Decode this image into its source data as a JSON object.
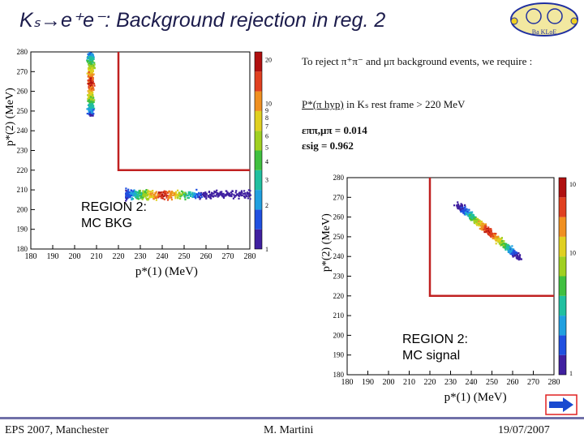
{
  "slide": {
    "title": "Kₛ→e⁺e⁻: Background rejection in reg. 2",
    "logo_text": "Ba KLoE",
    "description": "To reject π⁺π⁻ and μπ background events, we require :",
    "cut_text_underlined": "P*(π hyp)",
    "cut_text_rest": " in Kₛ rest frame > 220 MeV",
    "eff_bkg": "εππ,μπ  =  0.014",
    "eff_sig": "εsig   =  0.962"
  },
  "footer": {
    "left": "EPS 2007, Manchester",
    "center": "M. Martini",
    "right": "19/07/2007"
  },
  "colors": {
    "title": "#1c1c4c",
    "cut_line": "#c02020",
    "footer_bar": "#7070a8",
    "arrow_fill": "#1a4ad0",
    "arrow_border": "#e02020"
  },
  "chart_data": [
    {
      "type": "heatmap",
      "title": "",
      "annotation": "REGION 2:\nMC BKG",
      "annotation_lines": [
        "REGION 2:",
        "MC BKG"
      ],
      "xlabel": "p*(1) (MeV)",
      "ylabel": "p*(2) (MeV)",
      "xlim": [
        180,
        280
      ],
      "ylim": [
        180,
        280
      ],
      "xticks": [
        "180",
        "190",
        "200",
        "210",
        "220",
        "230",
        "240",
        "250",
        "260",
        "270",
        "280"
      ],
      "yticks": [
        "180",
        "190",
        "200",
        "210",
        "220",
        "230",
        "240",
        "250",
        "260",
        "270",
        "280"
      ],
      "colorbar_range": [
        1,
        20
      ],
      "colorbar_ticks": [
        "1",
        "2",
        "3",
        "4",
        "5",
        "6",
        "7",
        "8",
        "9",
        "10",
        "20"
      ],
      "cut": {
        "x": 220,
        "y": 220
      },
      "clusters": [
        {
          "x": [
            205,
            210
          ],
          "y": [
            248,
            280
          ],
          "peak_x": 207,
          "peak_y": 265,
          "orient": "vertical"
        },
        {
          "x": [
            223,
            280
          ],
          "y": [
            201,
            212
          ],
          "peak_x": 240,
          "peak_y": 208,
          "orient": "horizontal"
        }
      ]
    },
    {
      "type": "heatmap",
      "title": "",
      "annotation": "REGION 2:\nMC signal",
      "annotation_lines": [
        "REGION 2:",
        "MC signal"
      ],
      "xlabel": "p*(1) (MeV)",
      "ylabel": "p*(2) (MeV)",
      "xlim": [
        180,
        280
      ],
      "ylim": [
        180,
        280
      ],
      "xticks": [
        "180",
        "190",
        "200",
        "210",
        "220",
        "230",
        "240",
        "250",
        "260",
        "270",
        "280"
      ],
      "yticks": [
        "180",
        "190",
        "200",
        "210",
        "220",
        "230",
        "240",
        "250",
        "260",
        "270",
        "280"
      ],
      "colorbar_range": [
        1,
        10
      ],
      "colorbar_ticks": [
        "1",
        "10",
        "10"
      ],
      "cut": {
        "x": 220,
        "y": 220
      },
      "clusters": [
        {
          "x": [
            232,
            262
          ],
          "y": [
            239,
            266
          ],
          "peak_x": 248,
          "peak_y": 253,
          "orient": "diagonal"
        }
      ]
    }
  ]
}
